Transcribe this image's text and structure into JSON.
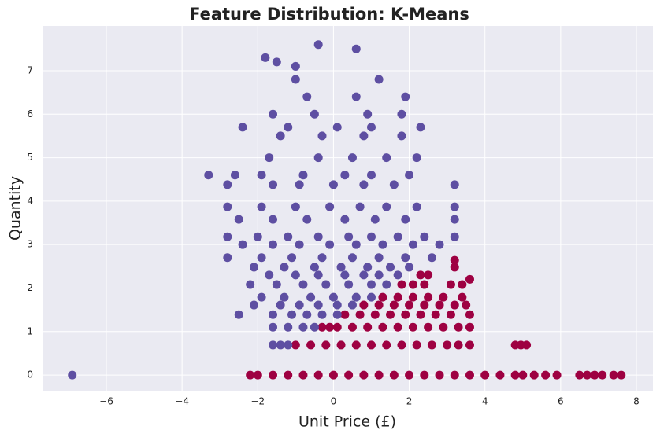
{
  "chart_data": {
    "type": "scatter",
    "title": "Feature Distribution: K-Means",
    "xlabel": "Unit Price (£)",
    "ylabel": "Quantity",
    "xlim": [
      -7.685,
      8.437
    ],
    "ylim": [
      -0.36,
      8.03
    ],
    "xticks": [
      {
        "value": -6,
        "label": "−6"
      },
      {
        "value": -4,
        "label": "−4"
      },
      {
        "value": -2,
        "label": "−2"
      },
      0,
      2,
      4,
      6,
      8
    ],
    "yticks": [
      0,
      1,
      2,
      3,
      4,
      5,
      6,
      7
    ],
    "grid": true,
    "series": [
      {
        "color": "#9e0142",
        "x": [
          -2.2,
          -2.0,
          -1.6,
          -1.2,
          -0.8,
          -0.4,
          0,
          0.4,
          0.8,
          1.2,
          1.6,
          2.0,
          2.4,
          2.8,
          3.2,
          3.6,
          4.0,
          4.4,
          4.8,
          5.0,
          5.3,
          5.6,
          5.9,
          6.5,
          6.7,
          6.9,
          7.1,
          7.4,
          7.6,
          -1.0,
          -0.6,
          -0.2,
          0.2,
          0.6,
          1.0,
          1.4,
          1.8,
          2.2,
          2.6,
          3.0,
          3.3,
          3.6,
          4.8,
          4.95,
          5.1,
          -0.3,
          0.1,
          0.5,
          0.9,
          1.3,
          1.7,
          2.1,
          2.5,
          2.9,
          3.3,
          3.6,
          -0.1,
          0.3,
          0.7,
          1.1,
          1.5,
          1.9,
          2.3,
          2.7,
          3.1,
          3.6,
          0.8,
          1.2,
          1.6,
          2.0,
          2.4,
          2.8,
          3.2,
          3.5,
          1.3,
          1.7,
          2.1,
          2.5,
          2.9,
          3.4,
          1.8,
          2.1,
          2.4,
          3.1,
          3.4,
          3.6,
          2.3,
          2.5,
          3.2,
          3.2
        ],
        "values": [
          0,
          0,
          0,
          0,
          0,
          0,
          0,
          0,
          0,
          0,
          0,
          0,
          0,
          0,
          0,
          0,
          0,
          0,
          0,
          0,
          0,
          0,
          0,
          0,
          0,
          0,
          0,
          0,
          0,
          0.69,
          0.69,
          0.69,
          0.69,
          0.69,
          0.69,
          0.69,
          0.69,
          0.69,
          0.69,
          0.69,
          0.69,
          0.69,
          0.69,
          0.69,
          0.69,
          1.1,
          1.1,
          1.1,
          1.1,
          1.1,
          1.1,
          1.1,
          1.1,
          1.1,
          1.1,
          1.1,
          1.1,
          1.39,
          1.39,
          1.39,
          1.39,
          1.39,
          1.39,
          1.39,
          1.39,
          1.39,
          1.61,
          1.61,
          1.61,
          1.61,
          1.61,
          1.61,
          1.61,
          1.61,
          1.79,
          1.79,
          1.79,
          1.79,
          1.79,
          1.79,
          2.08,
          2.08,
          2.08,
          2.08,
          2.08,
          2.2,
          2.3,
          2.3,
          2.48,
          2.64
        ]
      },
      {
        "color": "#5e4fa2",
        "x": [
          -6.9,
          -1.6,
          -1.4,
          -1.2,
          -1.6,
          -1.2,
          -0.8,
          -0.5,
          -2.5,
          -1.6,
          -1.1,
          -0.7,
          -0.3,
          0.1,
          -2.1,
          -1.4,
          -0.9,
          -0.4,
          0.1,
          0.5,
          -1.9,
          -1.3,
          -0.6,
          0,
          0.6,
          1.0,
          -2.2,
          -1.5,
          -0.8,
          -0.2,
          0.4,
          1.0,
          1.4,
          -1.7,
          -1.0,
          -0.4,
          0.3,
          0.8,
          1.2,
          1.7,
          -2.1,
          -1.3,
          -0.5,
          0.2,
          0.9,
          1.5,
          2.0,
          -2.8,
          -1.9,
          -1.1,
          -0.3,
          0.5,
          1.2,
          1.9,
          2.6,
          -2.4,
          -1.6,
          -0.9,
          -0.1,
          0.6,
          1.3,
          2.1,
          2.8,
          -2.8,
          -2.0,
          -1.2,
          -0.4,
          0.4,
          1.0,
          1.7,
          2.4,
          3.2,
          -2.5,
          -1.6,
          -0.7,
          0.3,
          1.1,
          1.9,
          3.2,
          -2.8,
          -1.9,
          -1.0,
          -0.1,
          0.7,
          1.4,
          2.2,
          3.2,
          -2.8,
          -1.6,
          -0.9,
          0.0,
          0.8,
          1.6,
          3.2,
          -3.3,
          -2.6,
          -1.9,
          -0.8,
          0.3,
          1.0,
          2.0,
          -1.7,
          -0.4,
          0.5,
          1.4,
          2.2,
          -1.4,
          -0.3,
          0.8,
          1.8,
          -2.4,
          -1.2,
          0.1,
          1.0,
          2.3,
          -1.6,
          -0.5,
          0.9,
          1.8,
          -0.7,
          0.6,
          1.9,
          -1.0,
          1.2,
          -1.0,
          -1.5,
          -1.8,
          0.6,
          -0.4
        ],
        "values": [
          0,
          0.69,
          0.69,
          0.69,
          1.1,
          1.1,
          1.1,
          1.1,
          1.39,
          1.39,
          1.39,
          1.39,
          1.39,
          1.39,
          1.61,
          1.61,
          1.61,
          1.61,
          1.61,
          1.61,
          1.79,
          1.79,
          1.79,
          1.79,
          1.79,
          1.79,
          2.08,
          2.08,
          2.08,
          2.08,
          2.08,
          2.08,
          2.08,
          2.3,
          2.3,
          2.3,
          2.3,
          2.3,
          2.3,
          2.3,
          2.48,
          2.48,
          2.48,
          2.48,
          2.48,
          2.48,
          2.48,
          2.7,
          2.7,
          2.7,
          2.7,
          2.7,
          2.7,
          2.7,
          2.7,
          3.0,
          3.0,
          3.0,
          3.0,
          3.0,
          3.0,
          3.0,
          3.0,
          3.18,
          3.18,
          3.18,
          3.18,
          3.18,
          3.18,
          3.18,
          3.18,
          3.18,
          3.58,
          3.58,
          3.58,
          3.58,
          3.58,
          3.58,
          3.58,
          3.87,
          3.87,
          3.87,
          3.87,
          3.87,
          3.87,
          3.87,
          3.87,
          4.38,
          4.38,
          4.38,
          4.38,
          4.38,
          4.38,
          4.38,
          4.6,
          4.6,
          4.6,
          4.6,
          4.6,
          4.6,
          4.6,
          5.0,
          5.0,
          5.0,
          5.0,
          5.0,
          5.5,
          5.5,
          5.5,
          5.5,
          5.7,
          5.7,
          5.7,
          5.7,
          5.7,
          6.0,
          6.0,
          6.0,
          6.0,
          6.4,
          6.4,
          6.4,
          6.8,
          6.8,
          7.1,
          7.2,
          7.3,
          7.5,
          7.6
        ]
      }
    ]
  }
}
